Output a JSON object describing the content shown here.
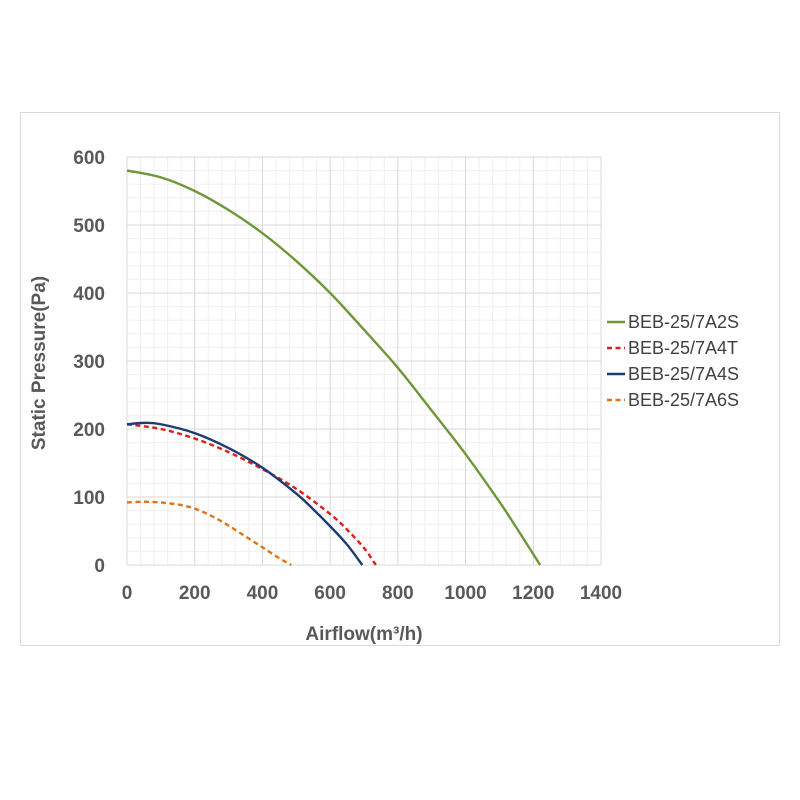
{
  "chart_data": {
    "type": "line",
    "title": "",
    "xlabel": "Airflow(m³/h)",
    "ylabel": "Static Pressure(Pa)",
    "xlim": [
      0,
      1400
    ],
    "ylim": [
      0,
      600
    ],
    "xticks": [
      0,
      200,
      400,
      600,
      800,
      1000,
      1200,
      1400
    ],
    "yticks": [
      0,
      100,
      200,
      300,
      400,
      500,
      600
    ],
    "minor_grid": true,
    "legend_position": "right",
    "series": [
      {
        "name": "BEB-25/7A2S",
        "color": "#70963a",
        "dash": "solid",
        "points": [
          [
            0,
            580
          ],
          [
            100,
            570
          ],
          [
            200,
            550
          ],
          [
            300,
            522
          ],
          [
            400,
            488
          ],
          [
            500,
            447
          ],
          [
            600,
            400
          ],
          [
            700,
            346
          ],
          [
            800,
            290
          ],
          [
            900,
            227
          ],
          [
            1000,
            163
          ],
          [
            1100,
            93
          ],
          [
            1150,
            55
          ],
          [
            1200,
            16
          ],
          [
            1220,
            0
          ]
        ]
      },
      {
        "name": "BEB-25/7A4T",
        "color": "#e01c1c",
        "dash": "dashed",
        "points": [
          [
            0,
            207
          ],
          [
            100,
            200
          ],
          [
            200,
            186
          ],
          [
            300,
            166
          ],
          [
            400,
            141
          ],
          [
            500,
            112
          ],
          [
            600,
            75
          ],
          [
            650,
            52
          ],
          [
            700,
            25
          ],
          [
            735,
            0
          ]
        ]
      },
      {
        "name": "BEB-25/7A4S",
        "color": "#1f3b73",
        "dash": "solid",
        "points": [
          [
            0,
            207
          ],
          [
            50,
            209
          ],
          [
            100,
            207
          ],
          [
            200,
            194
          ],
          [
            300,
            172
          ],
          [
            400,
            143
          ],
          [
            500,
            105
          ],
          [
            550,
            82
          ],
          [
            600,
            57
          ],
          [
            650,
            30
          ],
          [
            695,
            0
          ]
        ]
      },
      {
        "name": "BEB-25/7A6S",
        "color": "#e0741c",
        "dash": "dashed",
        "points": [
          [
            0,
            92
          ],
          [
            50,
            93
          ],
          [
            100,
            92
          ],
          [
            150,
            89
          ],
          [
            200,
            83
          ],
          [
            250,
            72
          ],
          [
            300,
            58
          ],
          [
            350,
            42
          ],
          [
            400,
            26
          ],
          [
            450,
            10
          ],
          [
            485,
            0
          ]
        ]
      }
    ]
  }
}
